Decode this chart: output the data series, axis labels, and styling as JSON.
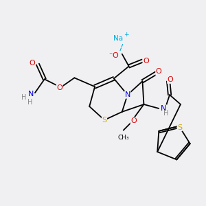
{
  "bg_color": "#f0f0f2",
  "atom_colors": {
    "C": "#000000",
    "N": "#0000dd",
    "O": "#dd0000",
    "S": "#ccaa00",
    "H": "#888888",
    "Na": "#00aadd"
  }
}
